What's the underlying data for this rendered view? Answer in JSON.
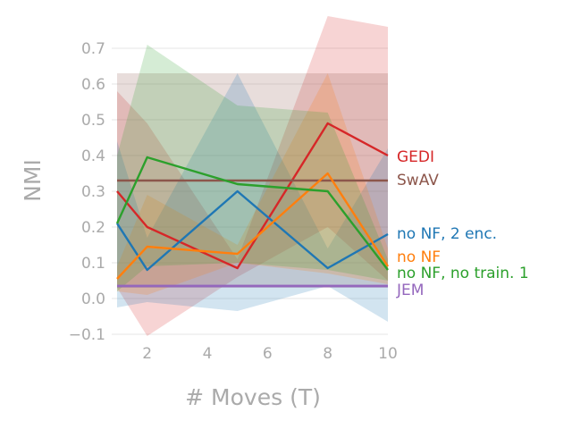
{
  "chart_data": {
    "type": "line",
    "title": "",
    "xlabel": "# Moves (T)",
    "ylabel": "NMI",
    "xlim": [
      1,
      10
    ],
    "ylim": [
      -0.1,
      0.78
    ],
    "xticks": [
      2,
      4,
      6,
      8,
      10
    ],
    "yticks": [
      -0.1,
      0.0,
      0.1,
      0.2,
      0.3,
      0.4,
      0.5,
      0.6,
      0.7
    ],
    "grid": "horizontal",
    "legend": "inline-right",
    "x": [
      1,
      2,
      5,
      8,
      10
    ],
    "series": [
      {
        "name": "GEDI",
        "color": "#d62728",
        "values": [
          0.3,
          0.2,
          0.085,
          0.49,
          0.4
        ],
        "lower": [
          0.03,
          -0.105,
          0.06,
          0.2,
          0.05
        ],
        "upper": [
          0.58,
          0.49,
          0.11,
          0.79,
          0.76
        ]
      },
      {
        "name": "SwAV",
        "color": "#8c564b",
        "values": [
          0.33,
          0.33,
          0.33,
          0.33,
          0.33
        ],
        "lower": [
          0.03,
          0.03,
          0.03,
          0.03,
          0.03
        ],
        "upper": [
          0.63,
          0.63,
          0.63,
          0.63,
          0.63
        ]
      },
      {
        "name": "no NF, 2 enc.",
        "color": "#1f77b4",
        "values": [
          0.21,
          0.08,
          0.3,
          0.085,
          0.18
        ],
        "lower": [
          -0.025,
          -0.01,
          -0.035,
          0.035,
          -0.065
        ],
        "upper": [
          0.44,
          0.17,
          0.63,
          0.14,
          0.42
        ]
      },
      {
        "name": "no NF",
        "color": "#ff7f0e",
        "values": [
          0.055,
          0.145,
          0.125,
          0.35,
          0.09
        ],
        "lower": [
          0.02,
          0.01,
          0.1,
          0.07,
          0.04
        ],
        "upper": [
          0.09,
          0.29,
          0.15,
          0.63,
          0.14
        ]
      },
      {
        "name": "no NF, no train. 1",
        "color": "#2ca02c",
        "values": [
          0.21,
          0.395,
          0.32,
          0.3,
          0.08
        ],
        "lower": [
          0.02,
          0.09,
          0.1,
          0.08,
          0.05
        ],
        "upper": [
          0.4,
          0.71,
          0.54,
          0.52,
          0.11
        ]
      },
      {
        "name": "JEM",
        "color": "#9467bd",
        "values": [
          0.035,
          0.035,
          0.035,
          0.035,
          0.035
        ],
        "lower": [
          0.03,
          0.03,
          0.03,
          0.03,
          0.03
        ],
        "upper": [
          0.04,
          0.04,
          0.04,
          0.04,
          0.04
        ]
      }
    ]
  }
}
